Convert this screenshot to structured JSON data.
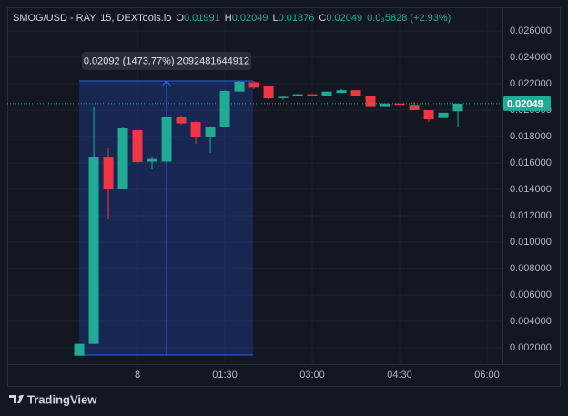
{
  "chart_data": {
    "type": "candlestick",
    "title": "SMOG/USD - RAY, 15, DEXTools.io",
    "ohlc_legend": [
      {
        "label": "O",
        "value": "0.01991"
      },
      {
        "label": "H",
        "value": "0.02049"
      },
      {
        "label": "L",
        "value": "0.01876"
      },
      {
        "label": "C",
        "value": "0.02049"
      }
    ],
    "change": "0.0₃5828 (+2.93%)",
    "open": [
      0.0014,
      0.0023,
      0.0164,
      0.014,
      0.01848,
      0.0161,
      0.0161,
      0.0195,
      0.0191,
      0.018,
      0.0187,
      0.0214,
      0.0221,
      0.0218,
      0.0209,
      0.0211,
      0.0212,
      0.0211,
      0.0213,
      0.0215,
      0.0211,
      0.0203,
      0.0205,
      0.0204,
      0.02,
      0.0194,
      0.01991
    ],
    "high": [
      0.0023,
      0.02021,
      0.0171,
      0.01876,
      0.0185,
      0.0165,
      0.0195,
      0.0196,
      0.0192,
      0.0188,
      0.0215,
      0.0222,
      0.0222,
      0.0218,
      0.0211,
      0.0212,
      0.0212,
      0.0214,
      0.0216,
      0.0215,
      0.0211,
      0.0205,
      0.0205,
      0.0206,
      0.02,
      0.0198,
      0.02049
    ],
    "low": [
      0.0014,
      0.0023,
      0.01172,
      0.014,
      0.016,
      0.01552,
      0.016,
      0.0189,
      0.01745,
      0.01676,
      0.0187,
      0.0214,
      0.0216,
      0.0208,
      0.0208,
      0.0211,
      0.0211,
      0.0211,
      0.0213,
      0.0211,
      0.0203,
      0.0203,
      0.0204,
      0.02,
      0.0191,
      0.0194,
      0.01876
    ],
    "close": [
      0.0023,
      0.01641,
      0.014,
      0.01862,
      0.01607,
      0.0163,
      0.01945,
      0.019,
      0.01793,
      0.0187,
      0.02145,
      0.02214,
      0.0217,
      0.02089,
      0.021,
      0.0212,
      0.0211,
      0.0214,
      0.0215,
      0.0211,
      0.0203,
      0.0205,
      0.0204,
      0.02,
      0.0193,
      0.0198,
      0.02049
    ],
    "up_color": "#22ab94",
    "down_color": "#f23645",
    "ylim": [
      0.000759,
      0.02779
    ],
    "yticks": [
      {
        "value": 0.002,
        "label": "0.002000"
      },
      {
        "value": 0.004,
        "label": "0.004000"
      },
      {
        "value": 0.006,
        "label": "0.006000"
      },
      {
        "value": 0.008,
        "label": "0.008000"
      },
      {
        "value": 0.01,
        "label": "0.010000"
      },
      {
        "value": 0.012,
        "label": "0.012000"
      },
      {
        "value": 0.014,
        "label": "0.014000"
      },
      {
        "value": 0.016,
        "label": "0.016000"
      },
      {
        "value": 0.018,
        "label": "0.018000"
      },
      {
        "value": 0.02,
        "label": "0.020000"
      },
      {
        "value": 0.022,
        "label": "0.022000"
      },
      {
        "value": 0.024,
        "label": "0.024000"
      },
      {
        "value": 0.026,
        "label": "0.026000"
      }
    ],
    "xlim": [
      -4.94,
      29.06
    ],
    "xticks": [
      {
        "value": 4,
        "label": "8"
      },
      {
        "value": 10,
        "label": "01:30"
      },
      {
        "value": 16,
        "label": "03:00"
      },
      {
        "value": 22,
        "label": "04:30"
      },
      {
        "value": 28,
        "label": "06:00"
      }
    ],
    "last_price_label": "0.02049",
    "measure_label": "0.02092 (1473.77%) 2092481644912",
    "grid": true
  },
  "brand": "TradingView"
}
